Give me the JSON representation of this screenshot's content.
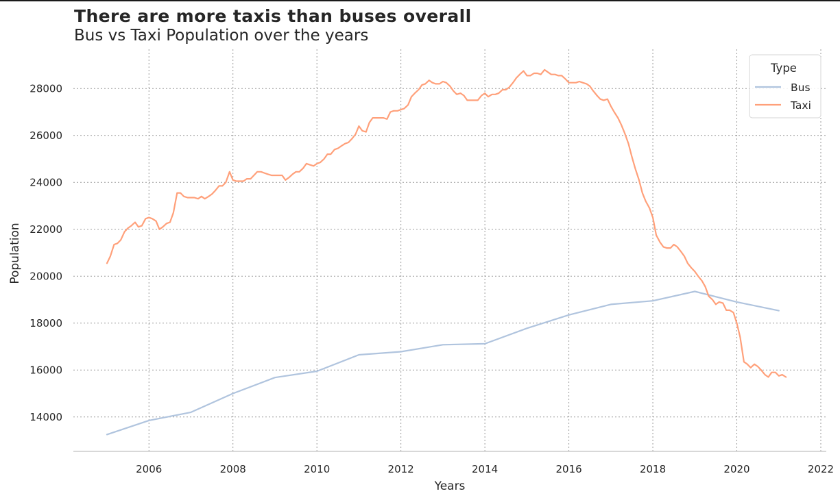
{
  "chart_data": {
    "type": "line",
    "title": "There are more taxis than buses overall",
    "subtitle": "Bus vs Taxi Population over the years",
    "xlabel": "Years",
    "ylabel": "Population",
    "xlim": [
      2005.0,
      2022.0
    ],
    "ylim": [
      13000,
      29000
    ],
    "x_ticks": [
      "2006",
      "2008",
      "2010",
      "2012",
      "2014",
      "2016",
      "2018",
      "2020",
      "2022"
    ],
    "y_ticks": [
      "14000",
      "16000",
      "18000",
      "20000",
      "22000",
      "24000",
      "26000",
      "28000"
    ],
    "grid": true,
    "legend": {
      "title": "Type",
      "position": "top-right"
    },
    "series": [
      {
        "name": "Bus",
        "color": "#b0c4de",
        "points": [
          [
            2005,
            13250
          ],
          [
            2006,
            13850
          ],
          [
            2007,
            14200
          ],
          [
            2008,
            15000
          ],
          [
            2009,
            15680
          ],
          [
            2010,
            15950
          ],
          [
            2011,
            16650
          ],
          [
            2012,
            16780
          ],
          [
            2013,
            17080
          ],
          [
            2014,
            17120
          ],
          [
            2015,
            17780
          ],
          [
            2016,
            18350
          ],
          [
            2017,
            18800
          ],
          [
            2018,
            18950
          ],
          [
            2019,
            19350
          ],
          [
            2020,
            18900
          ],
          [
            2021,
            18530
          ]
        ]
      },
      {
        "name": "Taxi",
        "color": "#ffa07a",
        "points": [
          [
            2005.0,
            20550
          ],
          [
            2005.08,
            20850
          ],
          [
            2005.17,
            21350
          ],
          [
            2005.25,
            21400
          ],
          [
            2005.33,
            21550
          ],
          [
            2005.42,
            21900
          ],
          [
            2005.5,
            22050
          ],
          [
            2005.58,
            22150
          ],
          [
            2005.67,
            22300
          ],
          [
            2005.75,
            22100
          ],
          [
            2005.83,
            22150
          ],
          [
            2005.92,
            22450
          ],
          [
            2006.0,
            22500
          ],
          [
            2006.08,
            22450
          ],
          [
            2006.17,
            22350
          ],
          [
            2006.25,
            22000
          ],
          [
            2006.33,
            22100
          ],
          [
            2006.42,
            22250
          ],
          [
            2006.5,
            22300
          ],
          [
            2006.58,
            22700
          ],
          [
            2006.67,
            23550
          ],
          [
            2006.75,
            23550
          ],
          [
            2006.83,
            23400
          ],
          [
            2006.92,
            23350
          ],
          [
            2007.0,
            23350
          ],
          [
            2007.08,
            23350
          ],
          [
            2007.17,
            23300
          ],
          [
            2007.25,
            23400
          ],
          [
            2007.33,
            23300
          ],
          [
            2007.42,
            23400
          ],
          [
            2007.5,
            23500
          ],
          [
            2007.58,
            23650
          ],
          [
            2007.67,
            23850
          ],
          [
            2007.75,
            23850
          ],
          [
            2007.83,
            24000
          ],
          [
            2007.92,
            24450
          ],
          [
            2008.0,
            24100
          ],
          [
            2008.08,
            24050
          ],
          [
            2008.17,
            24050
          ],
          [
            2008.25,
            24050
          ],
          [
            2008.33,
            24150
          ],
          [
            2008.42,
            24150
          ],
          [
            2008.5,
            24300
          ],
          [
            2008.58,
            24450
          ],
          [
            2008.67,
            24450
          ],
          [
            2008.75,
            24400
          ],
          [
            2008.83,
            24350
          ],
          [
            2008.92,
            24300
          ],
          [
            2009.0,
            24300
          ],
          [
            2009.08,
            24300
          ],
          [
            2009.17,
            24300
          ],
          [
            2009.25,
            24100
          ],
          [
            2009.33,
            24200
          ],
          [
            2009.42,
            24350
          ],
          [
            2009.5,
            24450
          ],
          [
            2009.58,
            24450
          ],
          [
            2009.67,
            24600
          ],
          [
            2009.75,
            24800
          ],
          [
            2009.83,
            24750
          ],
          [
            2009.92,
            24700
          ],
          [
            2010.0,
            24800
          ],
          [
            2010.08,
            24850
          ],
          [
            2010.17,
            25000
          ],
          [
            2010.25,
            25200
          ],
          [
            2010.33,
            25200
          ],
          [
            2010.42,
            25400
          ],
          [
            2010.5,
            25450
          ],
          [
            2010.58,
            25550
          ],
          [
            2010.67,
            25650
          ],
          [
            2010.75,
            25700
          ],
          [
            2010.83,
            25850
          ],
          [
            2010.92,
            26050
          ],
          [
            2011.0,
            26400
          ],
          [
            2011.08,
            26200
          ],
          [
            2011.17,
            26150
          ],
          [
            2011.25,
            26550
          ],
          [
            2011.33,
            26750
          ],
          [
            2011.42,
            26750
          ],
          [
            2011.5,
            26750
          ],
          [
            2011.58,
            26750
          ],
          [
            2011.67,
            26700
          ],
          [
            2011.75,
            27000
          ],
          [
            2011.83,
            27050
          ],
          [
            2011.92,
            27050
          ],
          [
            2012.0,
            27100
          ],
          [
            2012.08,
            27150
          ],
          [
            2012.17,
            27300
          ],
          [
            2012.25,
            27650
          ],
          [
            2012.33,
            27800
          ],
          [
            2012.42,
            27950
          ],
          [
            2012.5,
            28150
          ],
          [
            2012.58,
            28200
          ],
          [
            2012.67,
            28350
          ],
          [
            2012.75,
            28250
          ],
          [
            2012.83,
            28200
          ],
          [
            2012.92,
            28200
          ],
          [
            2013.0,
            28300
          ],
          [
            2013.08,
            28250
          ],
          [
            2013.17,
            28100
          ],
          [
            2013.25,
            27900
          ],
          [
            2013.33,
            27750
          ],
          [
            2013.42,
            27800
          ],
          [
            2013.5,
            27700
          ],
          [
            2013.58,
            27500
          ],
          [
            2013.67,
            27500
          ],
          [
            2013.75,
            27500
          ],
          [
            2013.83,
            27500
          ],
          [
            2013.92,
            27700
          ],
          [
            2014.0,
            27800
          ],
          [
            2014.08,
            27650
          ],
          [
            2014.17,
            27750
          ],
          [
            2014.25,
            27750
          ],
          [
            2014.33,
            27800
          ],
          [
            2014.42,
            27950
          ],
          [
            2014.5,
            27950
          ],
          [
            2014.58,
            28050
          ],
          [
            2014.67,
            28250
          ],
          [
            2014.75,
            28450
          ],
          [
            2014.83,
            28600
          ],
          [
            2014.92,
            28750
          ],
          [
            2015.0,
            28550
          ],
          [
            2015.08,
            28550
          ],
          [
            2015.17,
            28650
          ],
          [
            2015.25,
            28650
          ],
          [
            2015.33,
            28600
          ],
          [
            2015.42,
            28800
          ],
          [
            2015.5,
            28700
          ],
          [
            2015.58,
            28600
          ],
          [
            2015.67,
            28600
          ],
          [
            2015.75,
            28550
          ],
          [
            2015.83,
            28550
          ],
          [
            2015.92,
            28400
          ],
          [
            2016.0,
            28250
          ],
          [
            2016.08,
            28250
          ],
          [
            2016.17,
            28250
          ],
          [
            2016.25,
            28300
          ],
          [
            2016.33,
            28250
          ],
          [
            2016.42,
            28200
          ],
          [
            2016.5,
            28100
          ],
          [
            2016.58,
            27900
          ],
          [
            2016.67,
            27700
          ],
          [
            2016.75,
            27550
          ],
          [
            2016.83,
            27500
          ],
          [
            2016.92,
            27550
          ],
          [
            2017.0,
            27250
          ],
          [
            2017.08,
            27000
          ],
          [
            2017.17,
            26750
          ],
          [
            2017.25,
            26450
          ],
          [
            2017.33,
            26100
          ],
          [
            2017.42,
            25650
          ],
          [
            2017.5,
            25100
          ],
          [
            2017.58,
            24600
          ],
          [
            2017.67,
            24100
          ],
          [
            2017.75,
            23550
          ],
          [
            2017.83,
            23200
          ],
          [
            2017.92,
            22900
          ],
          [
            2018.0,
            22500
          ],
          [
            2018.08,
            21750
          ],
          [
            2018.17,
            21450
          ],
          [
            2018.25,
            21250
          ],
          [
            2018.33,
            21200
          ],
          [
            2018.42,
            21200
          ],
          [
            2018.5,
            21350
          ],
          [
            2018.58,
            21250
          ],
          [
            2018.67,
            21050
          ],
          [
            2018.75,
            20850
          ],
          [
            2018.83,
            20550
          ],
          [
            2018.92,
            20350
          ],
          [
            2019.0,
            20200
          ],
          [
            2019.08,
            20000
          ],
          [
            2019.17,
            19800
          ],
          [
            2019.25,
            19550
          ],
          [
            2019.33,
            19150
          ],
          [
            2019.42,
            19000
          ],
          [
            2019.5,
            18800
          ],
          [
            2019.58,
            18900
          ],
          [
            2019.67,
            18850
          ],
          [
            2019.75,
            18550
          ],
          [
            2019.83,
            18550
          ],
          [
            2019.92,
            18450
          ],
          [
            2020.0,
            18000
          ],
          [
            2020.08,
            17400
          ],
          [
            2020.17,
            16350
          ],
          [
            2020.25,
            16250
          ],
          [
            2020.33,
            16100
          ],
          [
            2020.42,
            16250
          ],
          [
            2020.5,
            16150
          ],
          [
            2020.58,
            16000
          ],
          [
            2020.67,
            15800
          ],
          [
            2020.75,
            15700
          ],
          [
            2020.83,
            15900
          ],
          [
            2020.92,
            15900
          ],
          [
            2021.0,
            15750
          ],
          [
            2021.08,
            15800
          ],
          [
            2021.17,
            15700
          ]
        ]
      }
    ]
  }
}
